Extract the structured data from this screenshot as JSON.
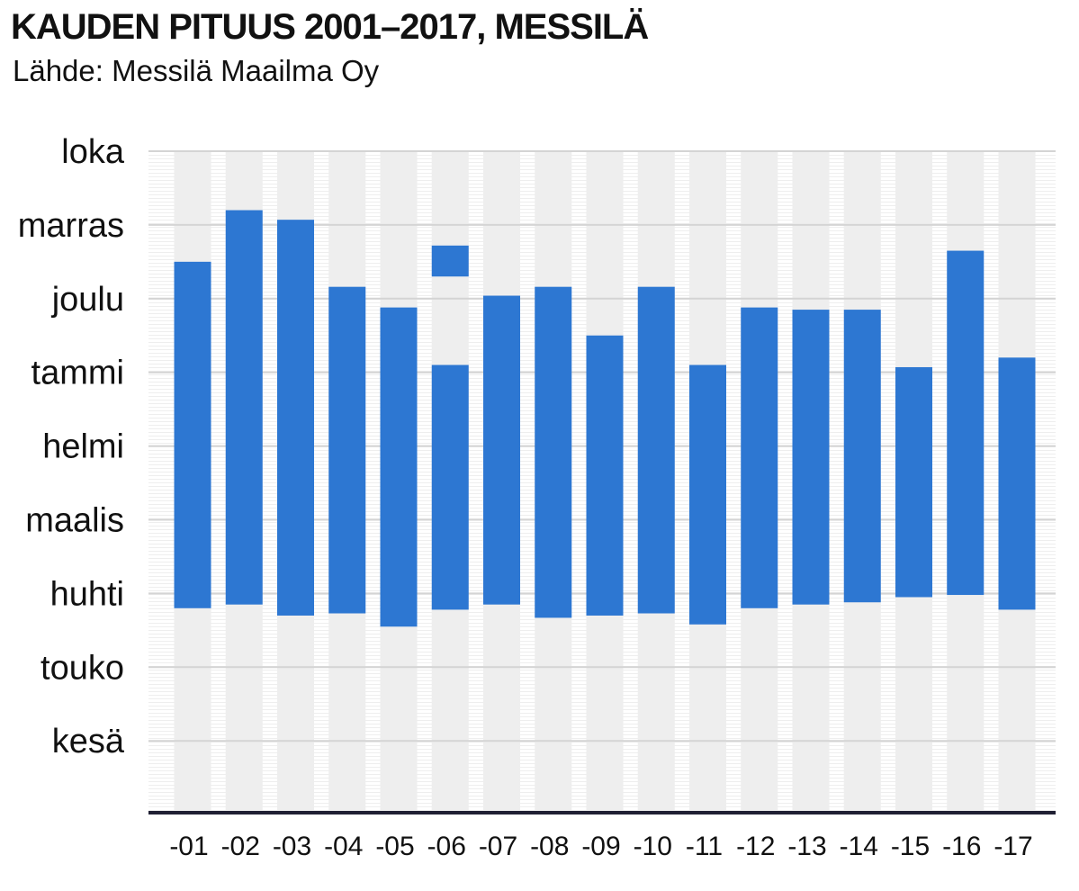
{
  "title": "KAUDEN PITUUS 2001–2017, MESSILÄ",
  "subtitle": "Lähde: Messilä Maailma Oy",
  "colors": {
    "bar": "#2d77d2",
    "band": "#eeeeee",
    "grid": "#d4d4d4",
    "axis": "#1f1f33"
  },
  "chart_data": {
    "type": "bar",
    "orientation": "vertical-floating",
    "title": "KAUDEN PITUUS 2001–2017, MESSILÄ",
    "subtitle": "Lähde: Messilä Maailma Oy",
    "y_ticks": [
      "loka",
      "marras",
      "joulu",
      "tammi",
      "helmi",
      "maalis",
      "huhti",
      "touko",
      "kesä"
    ],
    "y_note": "months from loka (0) to kesä (8); values are month positions",
    "ylim": [
      0,
      9
    ],
    "grid": true,
    "categories": [
      "-01",
      "-02",
      "-03",
      "-04",
      "-05",
      "-06",
      "-07",
      "-08",
      "-09",
      "-10",
      "-11",
      "-12",
      "-13",
      "-14",
      "-15",
      "-16",
      "-17"
    ],
    "segments": [
      [
        [
          1.5,
          6.2
        ]
      ],
      [
        [
          0.8,
          6.15
        ]
      ],
      [
        [
          0.93,
          6.3
        ]
      ],
      [
        [
          1.84,
          6.27
        ]
      ],
      [
        [
          2.12,
          6.45
        ]
      ],
      [
        [
          1.28,
          1.7
        ],
        [
          2.9,
          6.22
        ]
      ],
      [
        [
          1.96,
          6.15
        ]
      ],
      [
        [
          1.84,
          6.33
        ]
      ],
      [
        [
          2.5,
          6.3
        ]
      ],
      [
        [
          1.84,
          6.27
        ]
      ],
      [
        [
          2.9,
          6.42
        ]
      ],
      [
        [
          2.12,
          6.2
        ]
      ],
      [
        [
          2.15,
          6.15
        ]
      ],
      [
        [
          2.15,
          6.12
        ]
      ],
      [
        [
          2.93,
          6.05
        ]
      ],
      [
        [
          1.35,
          6.02
        ]
      ],
      [
        [
          2.8,
          6.22
        ]
      ]
    ]
  }
}
